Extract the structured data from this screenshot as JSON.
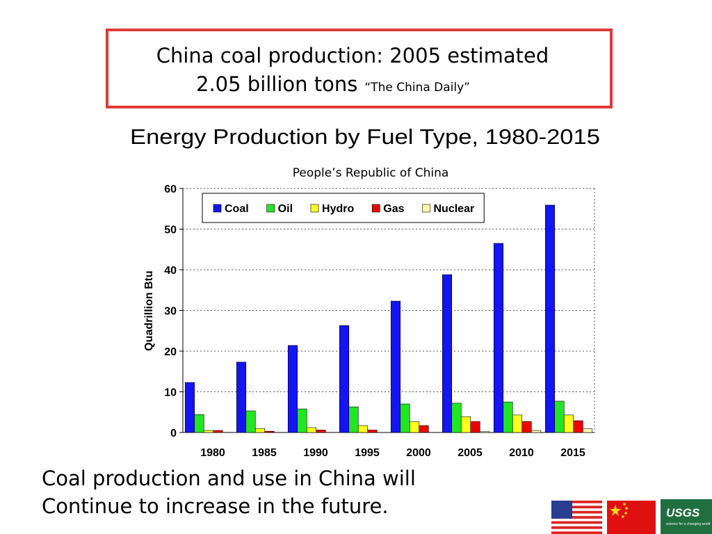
{
  "header": {
    "line1": "China coal production: 2005 estimated",
    "line2": "2.05 billion tons",
    "source": "“The China Daily”"
  },
  "chart_data": {
    "type": "bar",
    "title": "Energy Production by Fuel Type, 1980-2015",
    "subtitle": "People’s Republic of China",
    "y_label": "Quadrillion Btu",
    "categories": [
      "1980",
      "1985",
      "1990",
      "1995",
      "2000",
      "2005",
      "2010",
      "2015"
    ],
    "series": [
      {
        "name": "Coal",
        "color": "#1414f5",
        "values": [
          12.3,
          17.3,
          21.4,
          26.3,
          32.3,
          38.8,
          46.5,
          55.9
        ]
      },
      {
        "name": "Oil",
        "color": "#22e622",
        "values": [
          4.4,
          5.3,
          5.8,
          6.3,
          7.0,
          7.2,
          7.5,
          7.7
        ]
      },
      {
        "name": "Hydro",
        "color": "#ffff22",
        "values": [
          0.5,
          1.0,
          1.2,
          1.7,
          2.7,
          3.9,
          4.3,
          4.3
        ]
      },
      {
        "name": "Gas",
        "color": "#ee0000",
        "values": [
          0.5,
          0.3,
          0.6,
          0.6,
          1.7,
          2.7,
          2.7,
          2.9
        ]
      },
      {
        "name": "Nuclear",
        "color": "#ffffb0",
        "values": [
          0,
          0,
          0,
          0,
          0,
          0.2,
          0.5,
          0.9
        ]
      }
    ],
    "ylim": [
      0,
      60
    ],
    "yticks": [
      0,
      10,
      20,
      30,
      40,
      50,
      60
    ],
    "grid": true,
    "legend": "top-left"
  },
  "footer": {
    "lines": [
      "Coal production and use in China will",
      "Continue to increase in the future."
    ]
  },
  "logo": {
    "text": "USGS",
    "tagline": "science for a changing world"
  }
}
